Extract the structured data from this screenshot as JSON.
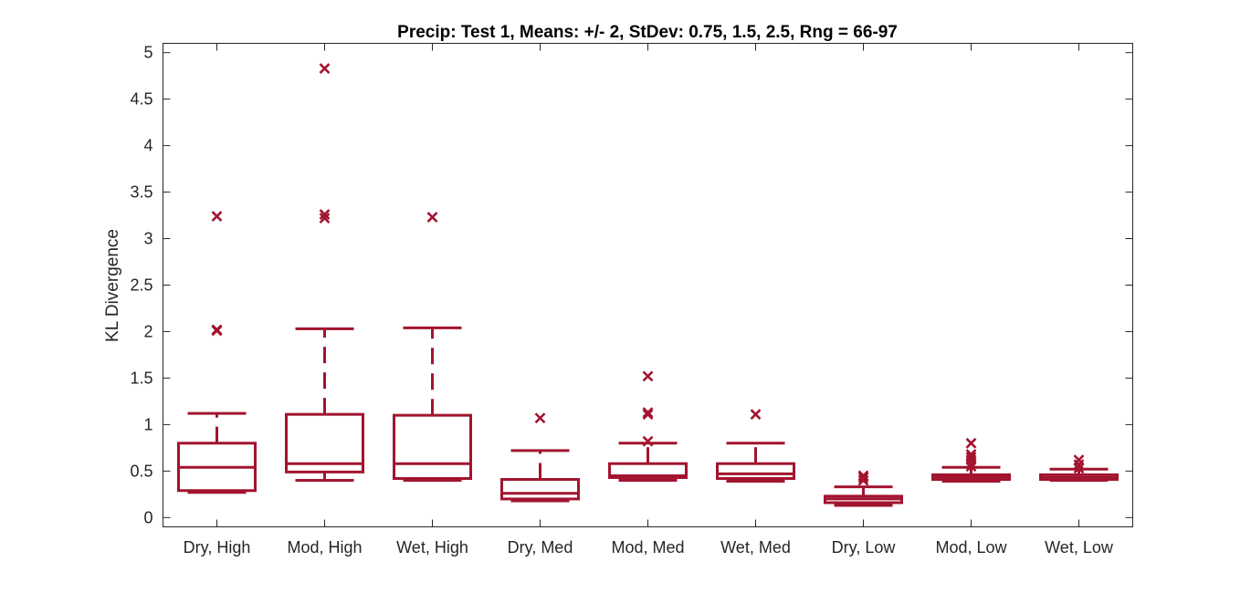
{
  "chart_data": {
    "type": "box",
    "title": "Precip: Test 1, Means: +/- 2, StDev: 0.75, 1.5, 2.5, Rng = 66-97",
    "xlabel": "",
    "ylabel": "KL Divergence",
    "ylim": [
      -0.1,
      5.1
    ],
    "yticks": [
      0,
      0.5,
      1,
      1.5,
      2,
      2.5,
      3,
      3.5,
      4,
      4.5,
      5
    ],
    "ytick_labels": [
      "0",
      "0.5",
      "1",
      "1.5",
      "2",
      "2.5",
      "3",
      "3.5",
      "4",
      "4.5",
      "5"
    ],
    "grid": false,
    "color": "#A2142F",
    "categories": [
      "Dry, High",
      "Mod, High",
      "Wet, High",
      "Dry, Med",
      "Mod, Med",
      "Wet, Med",
      "Dry, Low",
      "Mod, Low",
      "Wet, Low"
    ],
    "boxes": [
      {
        "whisker_low": 0.27,
        "q1": 0.29,
        "median": 0.54,
        "q3": 0.8,
        "whisker_high": 1.12,
        "outliers": [
          3.24,
          2.02,
          2.01
        ]
      },
      {
        "whisker_low": 0.4,
        "q1": 0.49,
        "median": 0.58,
        "q3": 1.11,
        "whisker_high": 2.03,
        "outliers": [
          4.83,
          3.26,
          3.22
        ]
      },
      {
        "whisker_low": 0.4,
        "q1": 0.42,
        "median": 0.58,
        "q3": 1.1,
        "whisker_high": 2.04,
        "outliers": [
          3.23
        ]
      },
      {
        "whisker_low": 0.18,
        "q1": 0.2,
        "median": 0.26,
        "q3": 0.41,
        "whisker_high": 0.72,
        "outliers": [
          1.07
        ]
      },
      {
        "whisker_low": 0.4,
        "q1": 0.43,
        "median": 0.45,
        "q3": 0.58,
        "whisker_high": 0.8,
        "outliers": [
          1.52,
          1.13,
          1.11,
          0.82
        ]
      },
      {
        "whisker_low": 0.39,
        "q1": 0.42,
        "median": 0.47,
        "q3": 0.58,
        "whisker_high": 0.8,
        "outliers": [
          1.11
        ]
      },
      {
        "whisker_low": 0.13,
        "q1": 0.16,
        "median": 0.2,
        "q3": 0.23,
        "whisker_high": 0.33,
        "outliers": [
          0.45,
          0.43,
          0.4
        ]
      },
      {
        "whisker_low": 0.39,
        "q1": 0.41,
        "median": 0.44,
        "q3": 0.46,
        "whisker_high": 0.54,
        "outliers": [
          0.8,
          0.68,
          0.65,
          0.62,
          0.58,
          0.55
        ]
      },
      {
        "whisker_low": 0.4,
        "q1": 0.41,
        "median": 0.43,
        "q3": 0.46,
        "whisker_high": 0.52,
        "outliers": [
          0.62,
          0.57,
          0.53
        ]
      }
    ]
  }
}
